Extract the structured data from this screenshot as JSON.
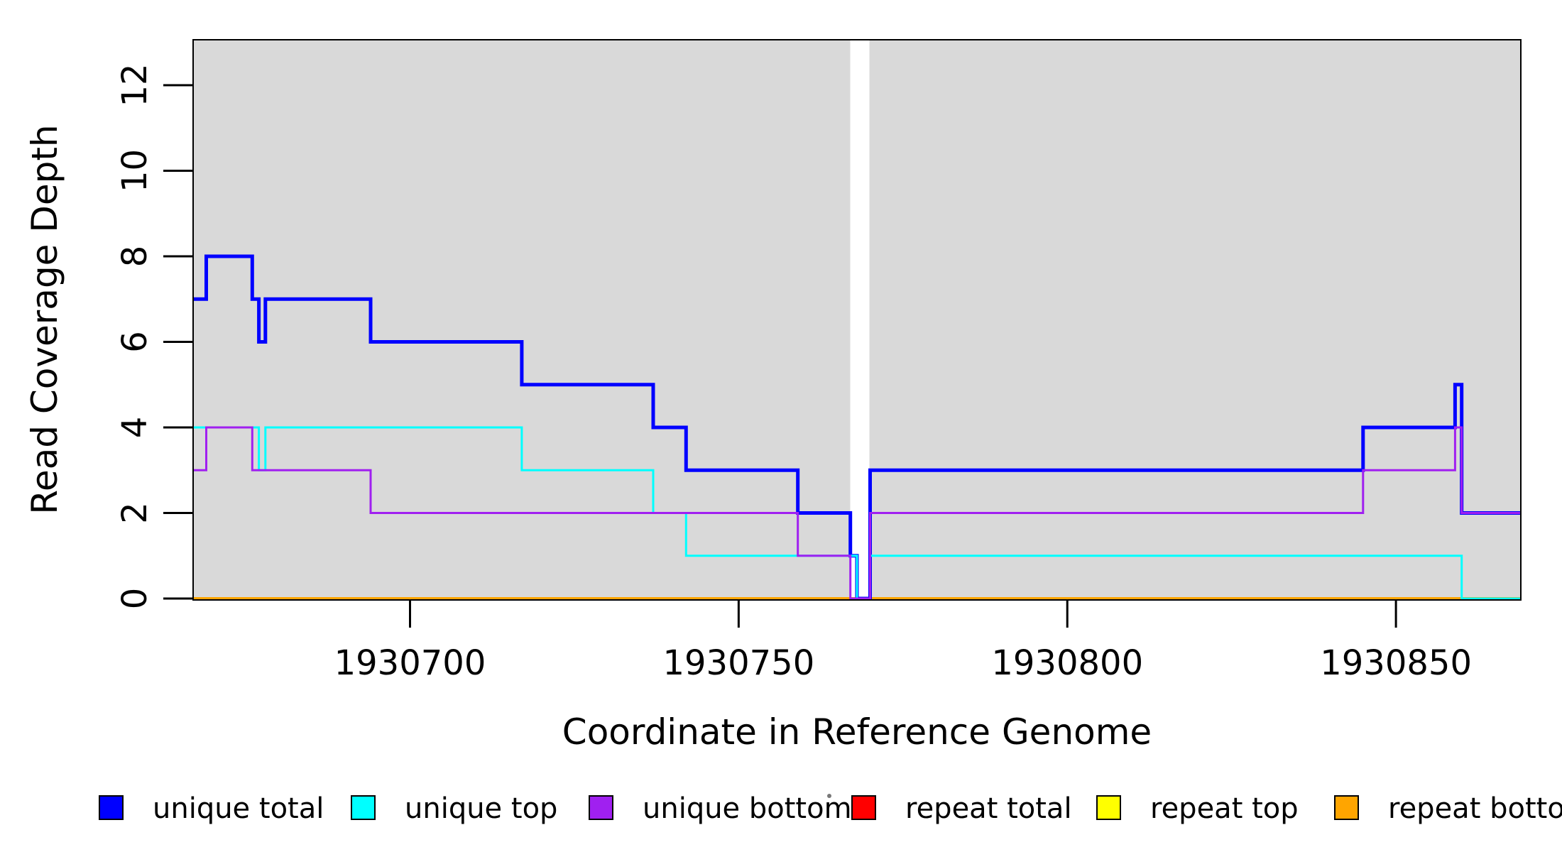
{
  "chart_data": {
    "type": "line",
    "step": true,
    "title": "",
    "xlabel": "Coordinate in Reference Genome",
    "ylabel": "Read Coverage Depth",
    "xlim": [
      1930667,
      1930869
    ],
    "ylim": [
      0,
      13.08
    ],
    "x_ticks": [
      {
        "value": 1930700,
        "label": "1930700"
      },
      {
        "value": 1930750,
        "label": "1930750"
      },
      {
        "value": 1930800,
        "label": "1930800"
      },
      {
        "value": 1930850,
        "label": "1930850"
      }
    ],
    "y_ticks": [
      {
        "value": 0,
        "label": "0"
      },
      {
        "value": 2,
        "label": "2"
      },
      {
        "value": 4,
        "label": "4"
      },
      {
        "value": 6,
        "label": "6"
      },
      {
        "value": 8,
        "label": "8"
      },
      {
        "value": 10,
        "label": "10"
      },
      {
        "value": 12,
        "label": "12"
      }
    ],
    "grid": false,
    "plot_bg_color": "#D9D9D9",
    "gap_regions": [
      [
        1930767.0,
        1930769.9
      ]
    ],
    "series": [
      {
        "name": "repeat total",
        "color": "#FF0000",
        "width": 4,
        "points": [
          [
            1930667,
            0
          ],
          [
            1930869,
            0
          ]
        ]
      },
      {
        "name": "repeat top",
        "color": "#FFFF00",
        "width": 4,
        "points": [
          [
            1930667,
            0
          ],
          [
            1930869,
            0
          ]
        ]
      },
      {
        "name": "repeat bottom",
        "color": "#FFA500",
        "width": 4,
        "points": [
          [
            1930667,
            0
          ],
          [
            1930869,
            0
          ]
        ]
      },
      {
        "name": "unique total",
        "color": "#0000FF",
        "width": 5,
        "points": [
          [
            1930667,
            7
          ],
          [
            1930669,
            8
          ],
          [
            1930676,
            7
          ],
          [
            1930677,
            6
          ],
          [
            1930678,
            7
          ],
          [
            1930694,
            6
          ],
          [
            1930717,
            5
          ],
          [
            1930737,
            4
          ],
          [
            1930742,
            3
          ],
          [
            1930759,
            2
          ],
          [
            1930767,
            1
          ],
          [
            1930768,
            0
          ],
          [
            1930770,
            3
          ],
          [
            1930845,
            4
          ],
          [
            1930859,
            5
          ],
          [
            1930860,
            2
          ],
          [
            1930869,
            2
          ]
        ]
      },
      {
        "name": "unique top",
        "color": "#00FFFF",
        "width": 3,
        "points": [
          [
            1930667,
            4
          ],
          [
            1930677,
            3
          ],
          [
            1930678,
            4
          ],
          [
            1930717,
            3
          ],
          [
            1930737,
            2
          ],
          [
            1930742,
            1
          ],
          [
            1930768,
            0
          ],
          [
            1930770,
            1
          ],
          [
            1930860,
            0
          ],
          [
            1930869,
            0
          ]
        ]
      },
      {
        "name": "unique bottom",
        "color": "#A020F0",
        "width": 3,
        "points": [
          [
            1930667,
            3
          ],
          [
            1930669,
            4
          ],
          [
            1930676,
            3
          ],
          [
            1930694,
            2
          ],
          [
            1930759,
            1
          ],
          [
            1930767,
            0
          ],
          [
            1930770,
            2
          ],
          [
            1930845,
            3
          ],
          [
            1930859,
            4
          ],
          [
            1930860,
            2
          ],
          [
            1930869,
            2
          ]
        ]
      }
    ],
    "legend_position": "bottom",
    "legend": [
      {
        "label": "unique total",
        "color": "#0000FF"
      },
      {
        "label": "unique top",
        "color": "#00FFFF"
      },
      {
        "label": "unique bottom",
        "color": "#A020F0"
      },
      {
        "label": "repeat total",
        "color": "#FF0000"
      },
      {
        "label": "repeat top",
        "color": "#FFFF00"
      },
      {
        "label": "repeat bottom",
        "color": "#FFA500"
      }
    ]
  }
}
